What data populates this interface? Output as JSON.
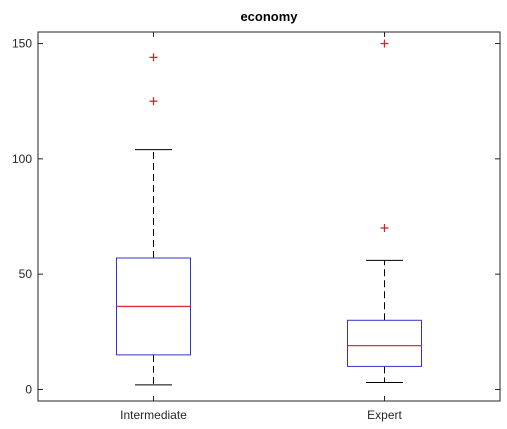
{
  "chart_data": {
    "type": "boxplot",
    "title": "economy",
    "xlabel": "",
    "ylabel": "",
    "ylim": [
      -5,
      155
    ],
    "yticks": [
      0,
      50,
      100,
      150
    ],
    "categories": [
      "Intermediate",
      "Expert"
    ],
    "boxes": [
      {
        "category": "Intermediate",
        "whisker_low": 2,
        "q1": 15,
        "median": 36,
        "q3": 57,
        "whisker_high": 104,
        "outliers": [
          125,
          144
        ]
      },
      {
        "category": "Expert",
        "whisker_low": 3,
        "q1": 10,
        "median": 19,
        "q3": 30,
        "whisker_high": 56,
        "outliers": [
          70,
          150
        ]
      }
    ],
    "colors": {
      "box": "#3333cc",
      "median": "#e0303a",
      "whisker": "#000000",
      "outlier": "#cc2a2a",
      "axis": "#262626"
    }
  }
}
